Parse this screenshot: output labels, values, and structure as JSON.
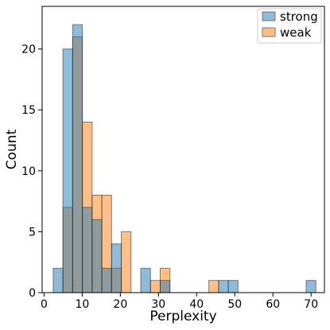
{
  "chart_data": {
    "type": "histogram",
    "xlabel": "Perplexity",
    "ylabel": "Count",
    "xlim": [
      -0.5,
      73.5
    ],
    "ylim": [
      0,
      23.5
    ],
    "xticks": [
      0,
      10,
      20,
      30,
      40,
      50,
      60,
      70
    ],
    "yticks": [
      0,
      5,
      10,
      15,
      20
    ],
    "grid": false,
    "legend_position": "top-right",
    "bin_edges": [
      2.4,
      4.95,
      7.5,
      10.05,
      12.6,
      15.15,
      17.7,
      20.25,
      22.8,
      25.35,
      27.9,
      30.45,
      33.0,
      35.55,
      38.1,
      40.65,
      43.2,
      45.75,
      48.3,
      50.85,
      53.4,
      55.95,
      58.5,
      61.05,
      63.6,
      66.15,
      68.7,
      71.25
    ],
    "series": [
      {
        "name": "strong",
        "color": "#1f77b4",
        "values": [
          2,
          20,
          22,
          7,
          6,
          2,
          4,
          0,
          0,
          2,
          0,
          1,
          0,
          0,
          0,
          0,
          0,
          1,
          1,
          0,
          0,
          0,
          0,
          0,
          0,
          0,
          1
        ]
      },
      {
        "name": "weak",
        "color": "#ff7f0e",
        "values": [
          0,
          7,
          21,
          14,
          8,
          8,
          2,
          5,
          0,
          0,
          1,
          2,
          0,
          0,
          0,
          0,
          1,
          0,
          0,
          0,
          0,
          0,
          0,
          0,
          0,
          0,
          0
        ]
      }
    ]
  }
}
